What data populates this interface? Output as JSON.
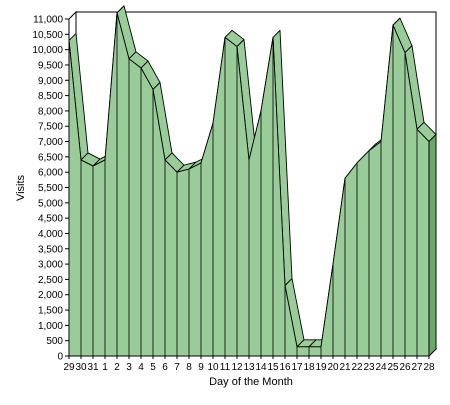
{
  "chart_data": {
    "type": "area",
    "style": "3d",
    "title": "",
    "xlabel": "Day of the Month",
    "ylabel": "Visits",
    "ylim": [
      0,
      11000
    ],
    "ytick_step": 500,
    "ytick_labels": [
      "0",
      "500",
      "1,000",
      "1,500",
      "2,000",
      "2,500",
      "3,000",
      "3,500",
      "4,000",
      "4,500",
      "5,000",
      "5,500",
      "6,000",
      "6,500",
      "7,000",
      "7,500",
      "8,000",
      "8,500",
      "9,000",
      "9,500",
      "10,000",
      "10,500",
      "11,000"
    ],
    "grid": true,
    "legend": "none",
    "fill_color": "#99cc99",
    "fill_dark_color": "#6aa86a",
    "categories": [
      "29",
      "30",
      "31",
      "1",
      "2",
      "3",
      "4",
      "5",
      "6",
      "7",
      "8",
      "9",
      "10",
      "11",
      "12",
      "13",
      "14",
      "15",
      "16",
      "17",
      "18",
      "19",
      "20",
      "21",
      "22",
      "23",
      "24",
      "25",
      "26",
      "27",
      "28"
    ],
    "values": [
      10300,
      6400,
      6200,
      6400,
      11200,
      9700,
      9400,
      8700,
      6400,
      6000,
      6100,
      6300,
      7600,
      10400,
      10100,
      6400,
      8000,
      10400,
      2300,
      300,
      300,
      300,
      3000,
      5800,
      6300,
      6700,
      7000,
      10800,
      9900,
      7400,
      7000
    ]
  }
}
